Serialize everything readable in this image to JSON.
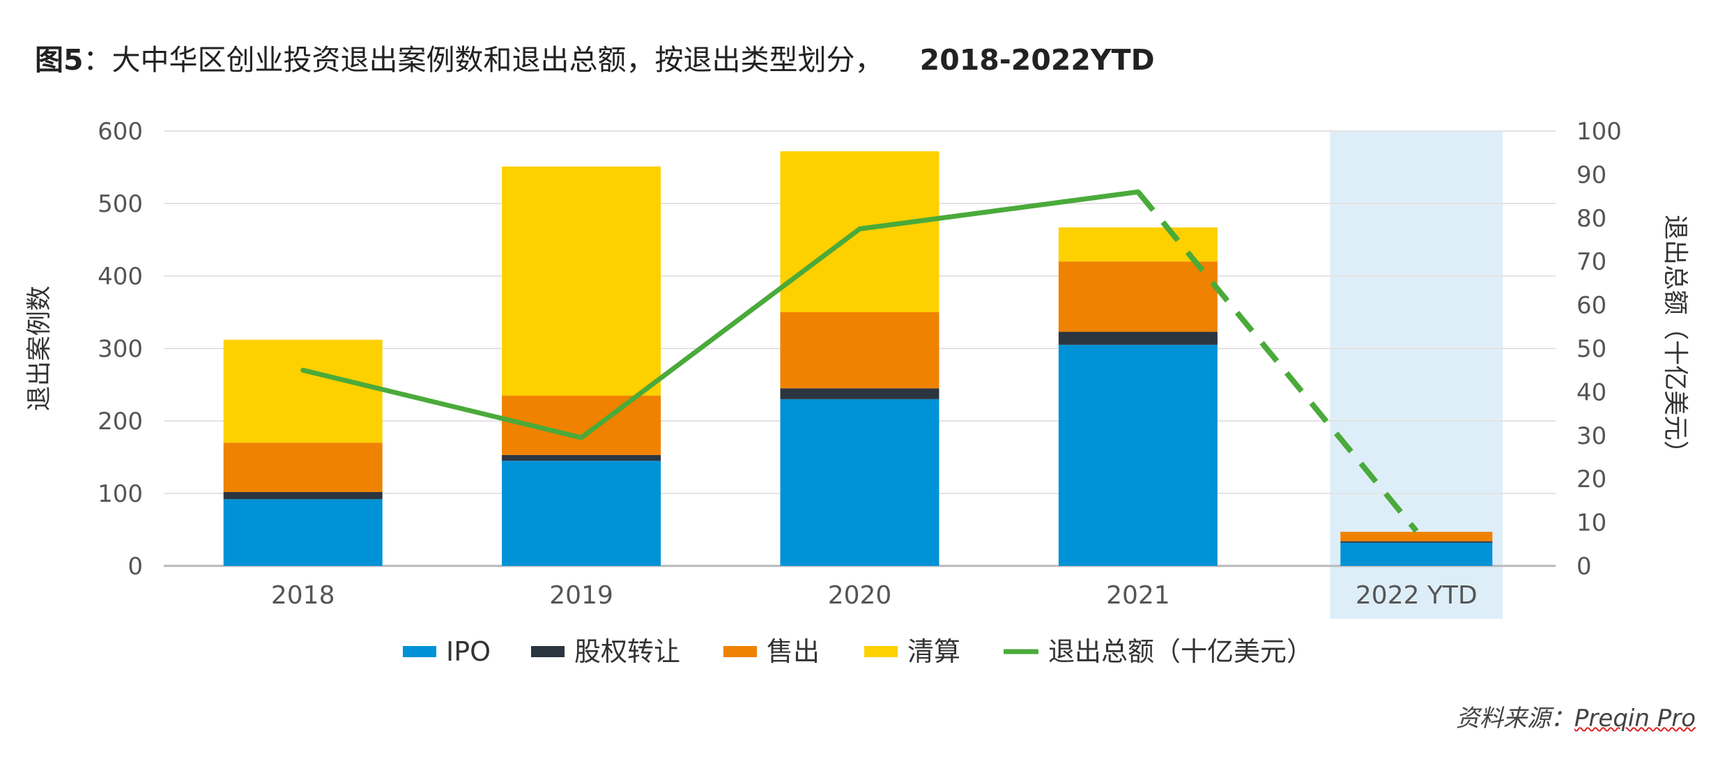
{
  "figure": {
    "label": "图5",
    "title": "：大中华区创业投资退出案例数和退出总额，按退出类型划分，",
    "period": "2018-2022YTD"
  },
  "source": {
    "prefix": "资料来源：",
    "brand": "Preqin Pro"
  },
  "chart_data": {
    "type": "bar",
    "stacked": true,
    "categories": [
      "2018",
      "2019",
      "2020",
      "2021",
      "2022 YTD"
    ],
    "highlight_category": "2022 YTD",
    "highlight_color": "#deeef9",
    "ylabel": "退出案例数",
    "ylabel_right": "退出总额（十亿美元）",
    "ylim": [
      0,
      600
    ],
    "yticks": [
      "0",
      "100",
      "200",
      "300",
      "400",
      "500",
      "600"
    ],
    "ylim_right": [
      0,
      100
    ],
    "yticks_right": [
      "0",
      "10",
      "20",
      "30",
      "40",
      "50",
      "60",
      "70",
      "80",
      "90",
      "100"
    ],
    "grid": true,
    "legend_position": "bottom",
    "series": [
      {
        "name": "IPO",
        "color": "#0092d6",
        "values": [
          92,
          145,
          230,
          305,
          32
        ]
      },
      {
        "name": "股权转让",
        "color": "#2b3540",
        "values": [
          10,
          8,
          15,
          18,
          2
        ]
      },
      {
        "name": "售出",
        "color": "#ef8200",
        "values": [
          68,
          82,
          105,
          97,
          13
        ]
      },
      {
        "name": "清算",
        "color": "#fdd000",
        "values": [
          142,
          316,
          222,
          47,
          0
        ]
      }
    ],
    "line_series": {
      "name": "退出总额（十亿美元）",
      "color": "#4aaa3a",
      "axis": "right",
      "values": [
        45,
        29.5,
        77.5,
        86,
        8
      ],
      "dashed_from_index": 3
    }
  }
}
